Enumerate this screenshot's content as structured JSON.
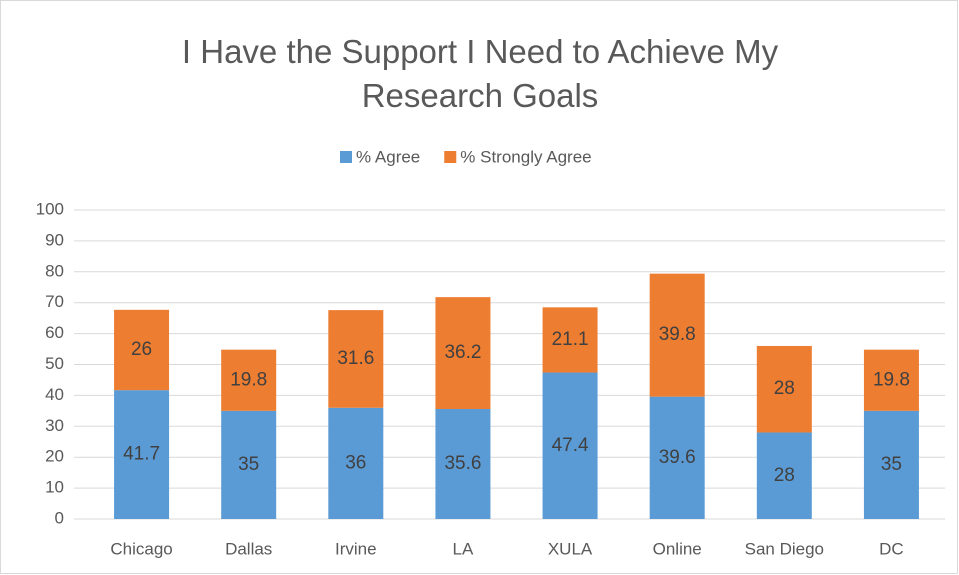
{
  "chart_data": {
    "type": "stacked_bar",
    "title": "I Have the Support I Need to Achieve My Research Goals",
    "categories": [
      "Chicago",
      "Dallas",
      "Irvine",
      "LA",
      "XULA",
      "Online",
      "San Diego",
      "DC"
    ],
    "series": [
      {
        "name": "% Agree",
        "color": "#5b9bd5",
        "values": [
          41.7,
          35,
          36,
          35.6,
          47.4,
          39.6,
          28,
          35
        ]
      },
      {
        "name": "% Strongly Agree",
        "color": "#ed7d31",
        "values": [
          26,
          19.8,
          31.6,
          36.2,
          21.1,
          39.8,
          28,
          19.8
        ]
      }
    ],
    "ylim": [
      0,
      100
    ],
    "yticks": [
      0,
      10,
      20,
      30,
      40,
      50,
      60,
      70,
      80,
      90,
      100
    ],
    "grid": true,
    "legend": "top"
  }
}
